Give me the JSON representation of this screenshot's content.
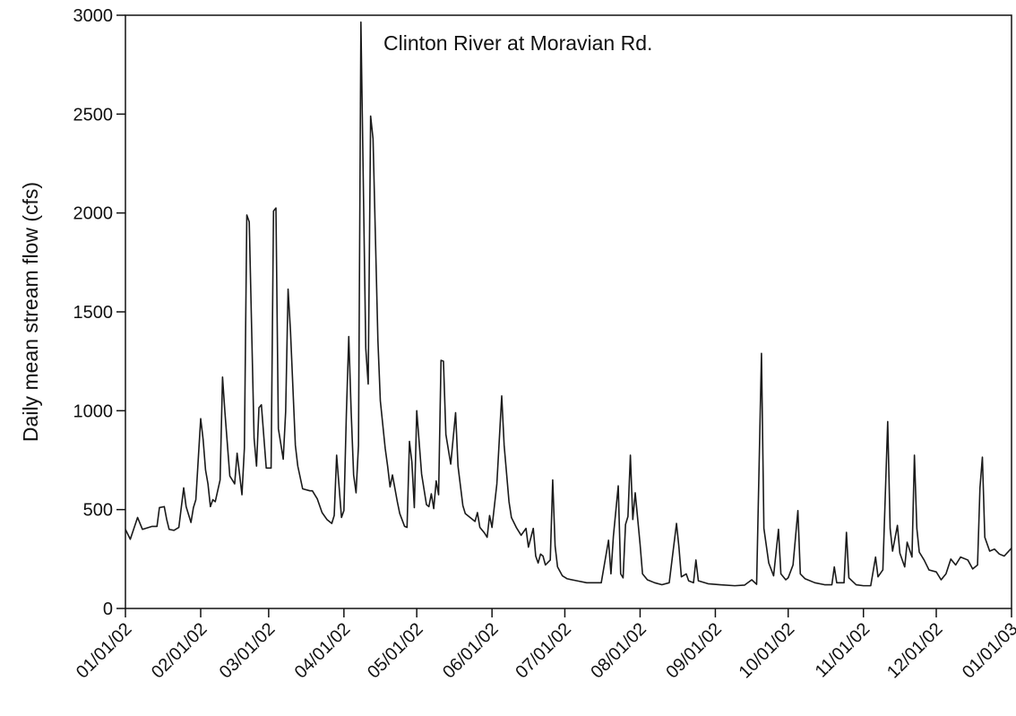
{
  "chart_data": {
    "type": "line",
    "title": "Clinton River at Moravian Rd.",
    "y_label": "Daily mean stream flow (cfs)",
    "color": "#1a1a1a",
    "x": [
      "01/01/02",
      "01/03/02",
      "01/06/02",
      "01/08/02",
      "01/12/02",
      "01/14/02",
      "01/15/02",
      "01/17/02",
      "01/18/02",
      "01/19/02",
      "01/21/02",
      "01/23/02",
      "01/25/02",
      "01/26/02",
      "01/28/02",
      "01/29/02",
      "01/30/02",
      "02/01/02",
      "02/02/02",
      "02/03/02",
      "02/04/02",
      "02/05/02",
      "02/06/02",
      "02/07/02",
      "02/09/02",
      "02/10/02",
      "02/11/02",
      "02/13/02",
      "02/15/02",
      "02/16/02",
      "02/18/02",
      "02/19/02",
      "02/20/02",
      "02/21/02",
      "02/23/02",
      "02/24/02",
      "02/25/02",
      "02/26/02",
      "02/28/02",
      "03/02/02",
      "03/03/02",
      "03/04/02",
      "03/05/02",
      "03/07/02",
      "03/08/02",
      "03/09/02",
      "03/10/02",
      "03/12/02",
      "03/13/02",
      "03/15/02",
      "03/18/02",
      "03/19/02",
      "03/21/02",
      "03/23/02",
      "03/25/02",
      "03/27/02",
      "03/28/02",
      "03/29/02",
      "03/31/02",
      "04/01/02",
      "04/02/02",
      "04/03/02",
      "04/04/02",
      "04/05/02",
      "04/06/02",
      "04/07/02",
      "04/08/02",
      "04/10/02",
      "04/11/02",
      "04/12/02",
      "04/13/02",
      "04/15/02",
      "04/16/02",
      "04/18/02",
      "04/19/02",
      "04/20/02",
      "04/21/02",
      "04/23/02",
      "04/24/02",
      "04/26/02",
      "04/27/02",
      "04/28/02",
      "04/29/02",
      "04/30/02",
      "05/01/02",
      "05/03/02",
      "05/05/02",
      "05/06/02",
      "05/07/02",
      "05/08/02",
      "05/09/02",
      "05/10/02",
      "05/11/02",
      "05/12/02",
      "05/13/02",
      "05/15/02",
      "05/17/02",
      "05/18/02",
      "05/20/02",
      "05/21/02",
      "05/23/02",
      "05/25/02",
      "05/26/02",
      "05/27/02",
      "05/29/02",
      "05/30/02",
      "05/31/02",
      "06/01/02",
      "06/03/02",
      "06/05/02",
      "06/06/02",
      "06/08/02",
      "06/09/02",
      "06/11/02",
      "06/13/02",
      "06/15/02",
      "06/16/02",
      "06/18/02",
      "06/19/02",
      "06/20/02",
      "06/21/02",
      "06/22/02",
      "06/23/02",
      "06/25/02",
      "06/26/02",
      "06/27/02",
      "06/28/02",
      "06/30/02",
      "07/02/02",
      "07/06/02",
      "07/10/02",
      "07/14/02",
      "07/16/02",
      "07/19/02",
      "07/20/02",
      "07/21/02",
      "07/23/02",
      "07/24/02",
      "07/25/02",
      "07/26/02",
      "07/27/02",
      "07/28/02",
      "07/29/02",
      "07/30/02",
      "08/01/02",
      "08/02/02",
      "08/04/02",
      "08/07/02",
      "08/10/02",
      "08/13/02",
      "08/16/02",
      "08/17/02",
      "08/18/02",
      "08/20/02",
      "08/21/02",
      "08/23/02",
      "08/24/02",
      "08/25/02",
      "08/29/02",
      "09/03/02",
      "09/09/02",
      "09/13/02",
      "09/16/02",
      "09/18/02",
      "09/20/02",
      "09/21/02",
      "09/23/02",
      "09/25/02",
      "09/27/02",
      "09/28/02",
      "09/30/02",
      "10/01/02",
      "10/03/02",
      "10/05/02",
      "10/06/02",
      "10/08/02",
      "10/12/02",
      "10/16/02",
      "10/19/02",
      "10/20/02",
      "10/21/02",
      "10/24/02",
      "10/25/02",
      "10/26/02",
      "10/29/02",
      "11/01/02",
      "11/04/02",
      "11/06/02",
      "11/07/02",
      "11/09/02",
      "11/11/02",
      "11/12/02",
      "11/13/02",
      "11/15/02",
      "11/16/02",
      "11/18/02",
      "11/19/02",
      "11/21/02",
      "11/22/02",
      "11/23/02",
      "11/24/02",
      "11/26/02",
      "11/28/02",
      "12/01/02",
      "12/03/02",
      "12/05/02",
      "12/07/02",
      "12/09/02",
      "12/11/02",
      "12/14/02",
      "12/16/02",
      "12/18/02",
      "12/19/02",
      "12/20/02",
      "12/21/02",
      "12/23/02",
      "12/25/02",
      "12/27/02",
      "12/29/02",
      "01/01/03"
    ],
    "values": [
      400,
      350,
      460,
      400,
      415,
      415,
      510,
      515,
      450,
      400,
      395,
      410,
      610,
      515,
      435,
      510,
      550,
      960,
      855,
      700,
      630,
      515,
      550,
      540,
      650,
      1170,
      990,
      670,
      630,
      785,
      575,
      810,
      1990,
      1955,
      860,
      720,
      1015,
      1030,
      710,
      710,
      2010,
      2025,
      910,
      755,
      995,
      1615,
      1400,
      825,
      720,
      605,
      595,
      595,
      555,
      485,
      450,
      430,
      470,
      775,
      460,
      495,
      980,
      1375,
      990,
      675,
      585,
      825,
      2965,
      1315,
      1135,
      2490,
      2375,
      1355,
      1050,
      810,
      720,
      615,
      675,
      540,
      480,
      415,
      410,
      845,
      740,
      510,
      1000,
      680,
      525,
      515,
      580,
      505,
      645,
      575,
      1255,
      1250,
      880,
      730,
      990,
      720,
      520,
      480,
      460,
      440,
      485,
      410,
      380,
      360,
      470,
      410,
      630,
      1075,
      825,
      540,
      460,
      410,
      370,
      405,
      310,
      405,
      265,
      230,
      275,
      265,
      220,
      245,
      650,
      315,
      210,
      165,
      150,
      140,
      130,
      130,
      130,
      345,
      175,
      365,
      620,
      175,
      155,
      425,
      465,
      775,
      450,
      585,
      325,
      175,
      145,
      130,
      120,
      130,
      430,
      310,
      160,
      175,
      140,
      130,
      245,
      140,
      125,
      120,
      115,
      118,
      145,
      122,
      1290,
      405,
      230,
      165,
      400,
      175,
      145,
      155,
      220,
      495,
      175,
      150,
      130,
      120,
      120,
      210,
      130,
      130,
      385,
      155,
      120,
      115,
      115,
      260,
      160,
      195,
      945,
      405,
      290,
      420,
      280,
      210,
      335,
      260,
      775,
      405,
      285,
      245,
      195,
      185,
      145,
      175,
      250,
      220,
      260,
      245,
      200,
      220,
      610,
      765,
      360,
      290,
      300,
      275,
      265,
      305
    ],
    "xlim": [
      "01/01/02",
      "01/01/03"
    ],
    "xticks": [
      "01/01/02",
      "02/01/02",
      "03/01/02",
      "04/01/02",
      "05/01/02",
      "06/01/02",
      "07/01/02",
      "08/01/02",
      "09/01/02",
      "10/01/02",
      "11/01/02",
      "12/01/02",
      "01/01/03"
    ],
    "ylim": [
      0,
      3000
    ],
    "yticks": [
      0,
      500,
      1000,
      1500,
      2000,
      2500,
      3000
    ]
  }
}
